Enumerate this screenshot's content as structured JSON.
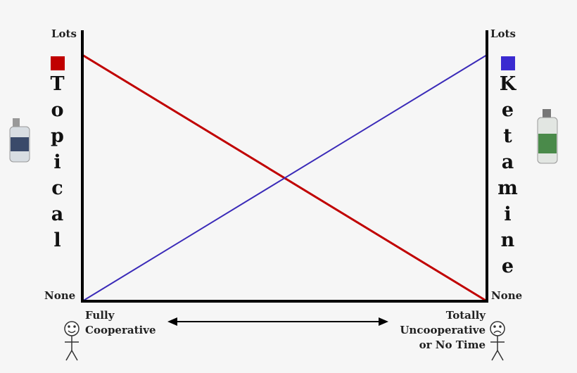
{
  "left_axis": {
    "top_label": "Lots",
    "bottom_label": "None",
    "series_label": "Topical"
  },
  "right_axis": {
    "top_label": "Lots",
    "bottom_label": "None",
    "series_label": "Ketamine"
  },
  "x_axis": {
    "left_label": "Fully\nCooperative",
    "right_label": "Totally\nUncooperative\nor No Time"
  }
}
